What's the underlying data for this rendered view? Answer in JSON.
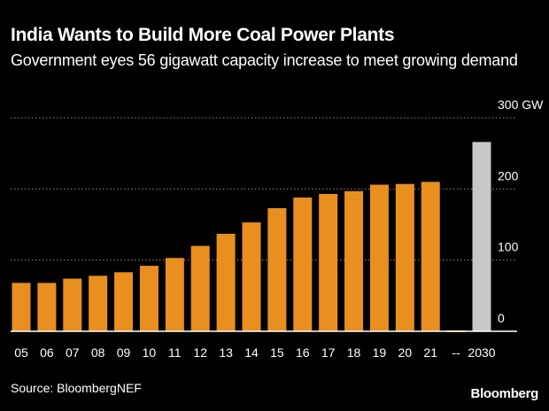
{
  "brand": "Bloomberg",
  "source": "Source: BloombergNEF",
  "colors": {
    "bar": "#e88f20",
    "bar_highlight": "#c8c8c8",
    "grid": "#8a8a8a",
    "axis": "#ffffff",
    "background": "#000000"
  },
  "chart_data": {
    "type": "bar",
    "title": "India Wants to Build More Coal Power Plants",
    "subtitle": "Government eyes 56 gigawatt capacity increase to meet growing demand",
    "xlabel": "",
    "ylabel": "",
    "categories": [
      "05",
      "06",
      "07",
      "08",
      "09",
      "10",
      "11",
      "12",
      "13",
      "14",
      "15",
      "16",
      "17",
      "18",
      "19",
      "20",
      "21",
      "--",
      "2030"
    ],
    "values": [
      68,
      68,
      74,
      78,
      83,
      92,
      103,
      120,
      137,
      153,
      173,
      188,
      193,
      197,
      206,
      207,
      210,
      0,
      266
    ],
    "highlight": "2030",
    "ylim": [
      0,
      300
    ],
    "yticks": [
      0,
      100,
      200,
      300
    ],
    "ytick_labels": [
      "0",
      "100",
      "200",
      "300 GW"
    ],
    "grid": true,
    "y_axis_side": "right"
  }
}
